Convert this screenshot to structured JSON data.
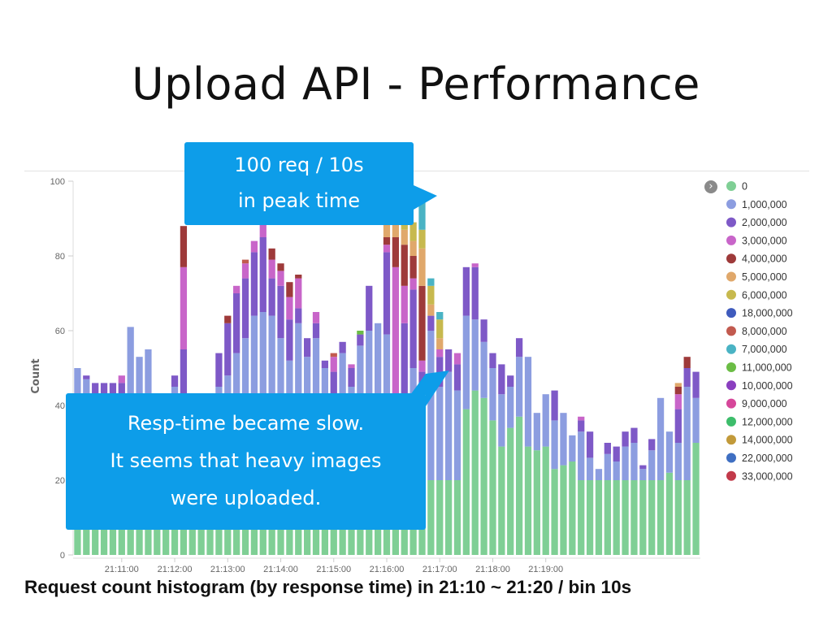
{
  "slide": {
    "title": "Upload API - Performance",
    "caption": "Request count histogram (by response time) in 21:10 ~ 21:20 / bin 10s",
    "callouts": {
      "peak": [
        "100 req / 10s",
        "in peak time"
      ],
      "slow": [
        "Resp-time became slow.",
        "It seems that heavy images",
        "were uploaded."
      ]
    }
  },
  "chart_data": {
    "type": "bar",
    "stacked": true,
    "ylabel": "Count",
    "xlabel": "",
    "ylim": [
      0,
      100
    ],
    "y_ticks": [
      0,
      20,
      40,
      60,
      80,
      100
    ],
    "bin": "10s",
    "x_tick_labels": [
      "21:11:00",
      "21:12:00",
      "21:13:00",
      "21:14:00",
      "21:15:00",
      "21:16:00",
      "21:17:00",
      "21:18:00",
      "21:19:00"
    ],
    "x_tick_bar_index": [
      5,
      11,
      17,
      23,
      29,
      35,
      41,
      47,
      53
    ],
    "legend_position": "right",
    "grid": false,
    "series": [
      {
        "name": "0",
        "color": "#7fcf95"
      },
      {
        "name": "1,000,000",
        "color": "#8c9de0"
      },
      {
        "name": "2,000,000",
        "color": "#7e59c7"
      },
      {
        "name": "3,000,000",
        "color": "#c865c9"
      },
      {
        "name": "4,000,000",
        "color": "#9e3a3a"
      },
      {
        "name": "5,000,000",
        "color": "#e0a86b"
      },
      {
        "name": "6,000,000",
        "color": "#c7b94e"
      },
      {
        "name": "18,000,000",
        "color": "#3f5bbd"
      },
      {
        "name": "8,000,000",
        "color": "#c25a4f"
      },
      {
        "name": "7,000,000",
        "color": "#4ab3c4"
      },
      {
        "name": "11,000,000",
        "color": "#6bbd45"
      },
      {
        "name": "10,000,000",
        "color": "#8a3fbf"
      },
      {
        "name": "9,000,000",
        "color": "#d6479a"
      },
      {
        "name": "12,000,000",
        "color": "#3dbd6b"
      },
      {
        "name": "14,000,000",
        "color": "#c29a3a"
      },
      {
        "name": "22,000,000",
        "color": "#3f6fc2"
      },
      {
        "name": "33,000,000",
        "color": "#c23a4a"
      }
    ],
    "bars": [
      {
        "0": 20,
        "1,000,000": 30
      },
      {
        "0": 20,
        "1,000,000": 27,
        "2,000,000": 1
      },
      {
        "0": 20,
        "1,000,000": 22,
        "2,000,000": 4
      },
      {
        "0": 20,
        "1,000,000": 22,
        "2,000,000": 4
      },
      {
        "0": 20,
        "1,000,000": 22,
        "2,000,000": 4
      },
      {
        "0": 20,
        "1,000,000": 22,
        "2,000,000": 4,
        "3,000,000": 2
      },
      {
        "0": 20,
        "1,000,000": 41
      },
      {
        "0": 20,
        "1,000,000": 33
      },
      {
        "0": 20,
        "1,000,000": 35
      },
      {
        "0": 20,
        "1,000,000": 22
      },
      {
        "0": 20,
        "1,000,000": 18
      },
      {
        "0": 20,
        "1,000,000": 25,
        "2,000,000": 3
      },
      {
        "0": 20,
        "1,000,000": 22,
        "2,000,000": 13,
        "3,000,000": 22,
        "4,000,000": 11
      },
      {
        "0": 20,
        "1,000,000": 18
      },
      {
        "0": 20,
        "1,000,000": 20
      },
      {
        "0": 20,
        "1,000,000": 22
      },
      {
        "0": 20,
        "1,000,000": 25,
        "2,000,000": 9
      },
      {
        "0": 20,
        "1,000,000": 28,
        "2,000,000": 14,
        "4,000,000": 2
      },
      {
        "0": 20,
        "1,000,000": 34,
        "2,000,000": 16,
        "3,000,000": 2
      },
      {
        "0": 20,
        "1,000,000": 38,
        "2,000,000": 16,
        "3,000,000": 4,
        "8,000,000": 1
      },
      {
        "0": 20,
        "1,000,000": 44,
        "2,000,000": 17,
        "3,000,000": 3
      },
      {
        "0": 20,
        "1,000,000": 45,
        "2,000,000": 20,
        "3,000,000": 7
      },
      {
        "0": 20,
        "1,000,000": 44,
        "2,000,000": 10,
        "3,000,000": 5,
        "4,000,000": 3
      },
      {
        "0": 20,
        "1,000,000": 38,
        "2,000,000": 14,
        "3,000,000": 4,
        "4,000,000": 2
      },
      {
        "0": 20,
        "1,000,000": 32,
        "2,000,000": 11,
        "3,000,000": 6,
        "4,000,000": 4
      },
      {
        "0": 20,
        "1,000,000": 42,
        "2,000,000": 4,
        "3,000,000": 8,
        "4,000,000": 1
      },
      {
        "0": 20,
        "1,000,000": 33,
        "2,000,000": 5
      },
      {
        "0": 20,
        "1,000,000": 38,
        "2,000,000": 4,
        "3,000,000": 3
      },
      {
        "0": 20,
        "1,000,000": 30,
        "2,000,000": 2
      },
      {
        "0": 20,
        "1,000,000": 20,
        "2,000,000": 9,
        "3,000,000": 4,
        "8,000,000": 1
      },
      {
        "0": 20,
        "1,000,000": 34,
        "2,000,000": 3
      },
      {
        "0": 20,
        "1,000,000": 25,
        "2,000,000": 5,
        "3,000,000": 1
      },
      {
        "0": 20,
        "1,000,000": 36,
        "2,000,000": 3,
        "11,000,000": 1
      },
      {
        "0": 20,
        "1,000,000": 40,
        "2,000,000": 12
      },
      {
        "0": 30,
        "1,000,000": 32
      },
      {
        "0": 20,
        "1,000,000": 39,
        "2,000,000": 22,
        "3,000,000": 2,
        "4,000,000": 2,
        "5,000,000": 5
      },
      {
        "0": 20,
        "1,000,000": 3,
        "2,000,000": 18,
        "3,000,000": 36,
        "4,000,000": 8,
        "5,000,000": 13,
        "6,000,000": 2,
        "7,000,000": 1
      },
      {
        "0": 20,
        "1,000,000": 20,
        "2,000,000": 22,
        "3,000,000": 10,
        "4,000,000": 11,
        "5,000,000": 4,
        "6,000,000": 12,
        "7,000,000": 2
      },
      {
        "0": 20,
        "1,000,000": 30,
        "2,000,000": 21,
        "3,000,000": 3,
        "4,000,000": 6,
        "5,000,000": 4,
        "6,000,000": 5
      },
      {
        "0": 20,
        "1,000,000": 25,
        "2,000,000": 4,
        "3,000,000": 3,
        "4,000,000": 20,
        "5,000,000": 10,
        "6,000,000": 5,
        "7,000,000": 8
      },
      {
        "0": 20,
        "1,000,000": 40,
        "2,000,000": 4,
        "5,000,000": 3,
        "6,000,000": 5,
        "7,000,000": 2
      },
      {
        "0": 20,
        "1,000,000": 25,
        "2,000,000": 8,
        "3,000,000": 2,
        "5,000,000": 3,
        "6,000,000": 5,
        "7,000,000": 2
      },
      {
        "0": 20,
        "1,000,000": 29,
        "2,000,000": 6
      },
      {
        "0": 20,
        "1,000,000": 24,
        "2,000,000": 7,
        "3,000,000": 3
      },
      {
        "0": 39,
        "1,000,000": 25,
        "2,000,000": 13
      },
      {
        "0": 44,
        "1,000,000": 19,
        "2,000,000": 14,
        "3,000,000": 1
      },
      {
        "0": 42,
        "1,000,000": 15,
        "2,000,000": 6
      },
      {
        "0": 36,
        "1,000,000": 14,
        "2,000,000": 4
      },
      {
        "0": 29,
        "1,000,000": 14,
        "2,000,000": 8
      },
      {
        "0": 34,
        "1,000,000": 11,
        "2,000,000": 3
      },
      {
        "0": 37,
        "1,000,000": 16,
        "2,000,000": 5
      },
      {
        "0": 29,
        "1,000,000": 24
      },
      {
        "0": 28,
        "1,000,000": 10
      },
      {
        "0": 29,
        "1,000,000": 14
      },
      {
        "0": 23,
        "1,000,000": 13,
        "2,000,000": 8
      },
      {
        "0": 24,
        "1,000,000": 14
      },
      {
        "0": 25,
        "1,000,000": 7
      },
      {
        "0": 20,
        "1,000,000": 13,
        "2,000,000": 3,
        "3,000,000": 1
      },
      {
        "0": 20,
        "1,000,000": 6,
        "2,000,000": 7
      },
      {
        "0": 20,
        "1,000,000": 3
      },
      {
        "0": 20,
        "1,000,000": 7,
        "2,000,000": 3
      },
      {
        "0": 20,
        "1,000,000": 5,
        "2,000,000": 4
      },
      {
        "0": 20,
        "1,000,000": 9,
        "2,000,000": 4
      },
      {
        "0": 20,
        "1,000,000": 10,
        "2,000,000": 4
      },
      {
        "0": 20,
        "1,000,000": 3,
        "2,000,000": 1
      },
      {
        "0": 20,
        "1,000,000": 8,
        "2,000,000": 3
      },
      {
        "0": 20,
        "1,000,000": 22
      },
      {
        "0": 22,
        "1,000,000": 11
      },
      {
        "0": 20,
        "1,000,000": 10,
        "2,000,000": 9,
        "3,000,000": 4,
        "4,000,000": 2,
        "5,000,000": 1
      },
      {
        "0": 20,
        "1,000,000": 25,
        "2,000,000": 5,
        "4,000,000": 3
      },
      {
        "0": 30,
        "1,000,000": 12,
        "2,000,000": 7
      }
    ]
  }
}
